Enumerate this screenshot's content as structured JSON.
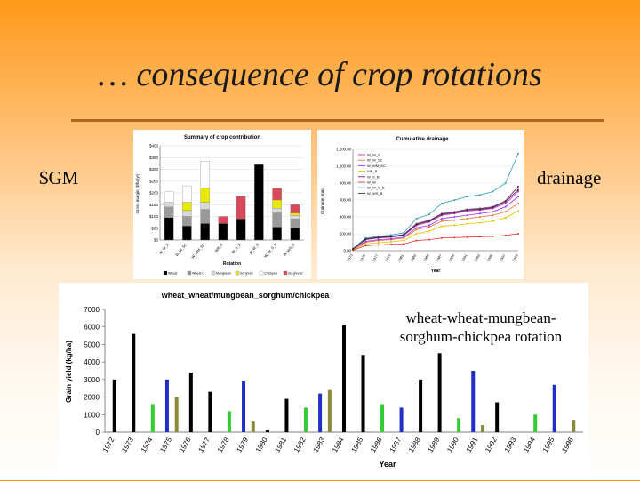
{
  "slide": {
    "title": "… consequence of crop rotations",
    "left_label": "$GM",
    "right_label": "drainage",
    "rotation_note": "wheat-wheat-mungbean-sorghum-chickpea rotation"
  },
  "chart_data": [
    {
      "id": "crop-contribution",
      "type": "bar",
      "stacked": true,
      "title": "Summary of crop contribution",
      "xlabel": "Rotation",
      "ylabel": "Gross margin ($/ha/yr)",
      "ylim": [
        0,
        400
      ],
      "yticks": [
        "$0",
        "$50",
        "$100",
        "$150",
        "$200",
        "$250",
        "$300",
        "$350",
        "$400"
      ],
      "categories": [
        "W_W_S",
        "W_W_SC",
        "W_WM_SC",
        "WB_B",
        "W_S_B",
        "W_W_B",
        "W_W_S_B",
        "W_WS_B"
      ],
      "series": [
        {
          "name": "Wheat",
          "color": "#000000",
          "values": [
            95,
            60,
            70,
            70,
            90,
            320,
            55,
            50
          ]
        },
        {
          "name": "Wheat C",
          "color": "#9a9a9a",
          "values": [
            45,
            40,
            60,
            0,
            0,
            0,
            60,
            40
          ]
        },
        {
          "name": "Mungbean",
          "color": "#d9d9d9",
          "values": [
            20,
            25,
            30,
            0,
            0,
            0,
            20,
            15
          ]
        },
        {
          "name": "Sorghum",
          "color": "#e8e800",
          "values": [
            0,
            35,
            60,
            0,
            0,
            0,
            35,
            10
          ]
        },
        {
          "name": "Chickpea",
          "color": "#ffffff",
          "values": [
            45,
            70,
            115,
            0,
            0,
            0,
            0,
            0
          ]
        },
        {
          "name": "Sorghum2",
          "color": "#d84a5a",
          "values": [
            0,
            0,
            0,
            30,
            95,
            0,
            50,
            35
          ]
        }
      ],
      "legend": [
        "Wheat",
        "Wheat C",
        "Mungbean",
        "Sorghum",
        "Chickpea",
        "Sorghum2"
      ]
    },
    {
      "id": "cumulative-drainage",
      "type": "line",
      "title": "Cumulative drainage",
      "xlabel": "Year",
      "ylabel": "Drainage (mm)",
      "ylim": [
        0,
        1200
      ],
      "yticks": [
        "0.00",
        "200.00",
        "400.00",
        "600.00",
        "800.00",
        "1,000.00",
        "1,200.00"
      ],
      "x": [
        1973,
        1975,
        1977,
        1979,
        1981,
        1983,
        1985,
        1987,
        1989,
        1991,
        1993,
        1995,
        1997,
        1999
      ],
      "series": [
        {
          "name": "W_W_S",
          "color": "#d020c0",
          "values": [
            20,
            130,
            150,
            160,
            180,
            300,
            340,
            420,
            440,
            470,
            480,
            500,
            560,
            700
          ]
        },
        {
          "name": "W_W_SC",
          "color": "#e07030",
          "values": [
            15,
            100,
            120,
            130,
            150,
            250,
            280,
            350,
            360,
            380,
            400,
            420,
            460,
            560
          ]
        },
        {
          "name": "W_WM_SC",
          "color": "#9b30ff",
          "values": [
            18,
            110,
            130,
            140,
            160,
            270,
            300,
            380,
            400,
            420,
            440,
            460,
            520,
            640
          ]
        },
        {
          "name": "WB_B",
          "color": "#e8c000",
          "values": [
            10,
            80,
            95,
            105,
            120,
            200,
            230,
            290,
            300,
            320,
            330,
            350,
            390,
            470
          ]
        },
        {
          "name": "W_S_B",
          "color": "#7a1a7a",
          "values": [
            22,
            140,
            160,
            170,
            190,
            320,
            360,
            440,
            460,
            490,
            500,
            520,
            590,
            760
          ]
        },
        {
          "name": "W_W",
          "color": "#e03030",
          "values": [
            5,
            60,
            70,
            75,
            80,
            120,
            130,
            150,
            155,
            160,
            165,
            170,
            180,
            200
          ]
        },
        {
          "name": "W_W_S_B",
          "color": "#30a0b0",
          "values": [
            25,
            150,
            170,
            185,
            210,
            380,
            430,
            560,
            600,
            640,
            660,
            700,
            800,
            1150
          ]
        },
        {
          "name": "W_WS_B",
          "color": "#303030",
          "values": [
            20,
            135,
            155,
            165,
            185,
            310,
            350,
            430,
            450,
            480,
            490,
            510,
            580,
            720
          ]
        }
      ]
    },
    {
      "id": "grain-yield",
      "type": "bar",
      "title": "wheat_wheat/mungbean_sorghum/chickpea",
      "xlabel": "Year",
      "ylabel": "Grain yield (kg/ha)",
      "ylim": [
        0,
        7000
      ],
      "yticks": [
        "0",
        "1000",
        "2000",
        "3000",
        "4000",
        "5000",
        "6000",
        "7000"
      ],
      "categories": [
        "1972",
        "1973",
        "1974",
        "1975",
        "1976",
        "1977",
        "1978",
        "1979",
        "1980",
        "1981",
        "1982",
        "1983",
        "1984",
        "1985",
        "1986",
        "1987",
        "1988",
        "1989",
        "1990",
        "1991",
        "1992",
        "1993",
        "1994",
        "1995",
        "1996"
      ],
      "colors": {
        "wheat": "#000000",
        "mungbean": "#33cc33",
        "sorghum": "#1f2fc8",
        "chickpea": "#8a8a3a"
      },
      "bars": [
        {
          "year": "1972",
          "crop": "wheat",
          "value": 3000
        },
        {
          "year": "1973",
          "crop": "wheat",
          "value": 5600
        },
        {
          "year": "1974",
          "crop": "mungbean",
          "value": 1600
        },
        {
          "year": "1975",
          "crop": "sorghum",
          "value": 3000
        },
        {
          "year": "1975",
          "crop": "chickpea",
          "value": 2000
        },
        {
          "year": "1976",
          "crop": "wheat",
          "value": 3400
        },
        {
          "year": "1977",
          "crop": "wheat",
          "value": 2300
        },
        {
          "year": "1978",
          "crop": "mungbean",
          "value": 1200
        },
        {
          "year": "1979",
          "crop": "sorghum",
          "value": 2900
        },
        {
          "year": "1979",
          "crop": "chickpea",
          "value": 600
        },
        {
          "year": "1980",
          "crop": "wheat",
          "value": 100
        },
        {
          "year": "1981",
          "crop": "wheat",
          "value": 1900
        },
        {
          "year": "1982",
          "crop": "mungbean",
          "value": 1400
        },
        {
          "year": "1983",
          "crop": "sorghum",
          "value": 2200
        },
        {
          "year": "1983",
          "crop": "chickpea",
          "value": 2400
        },
        {
          "year": "1984",
          "crop": "wheat",
          "value": 6100
        },
        {
          "year": "1985",
          "crop": "wheat",
          "value": 4400
        },
        {
          "year": "1986",
          "crop": "mungbean",
          "value": 1600
        },
        {
          "year": "1987",
          "crop": "sorghum",
          "value": 1400
        },
        {
          "year": "1988",
          "crop": "wheat",
          "value": 3000
        },
        {
          "year": "1989",
          "crop": "wheat",
          "value": 4500
        },
        {
          "year": "1990",
          "crop": "mungbean",
          "value": 800
        },
        {
          "year": "1991",
          "crop": "sorghum",
          "value": 3500
        },
        {
          "year": "1991",
          "crop": "chickpea",
          "value": 400
        },
        {
          "year": "1992",
          "crop": "wheat",
          "value": 1700
        },
        {
          "year": "1994",
          "crop": "mungbean",
          "value": 1000
        },
        {
          "year": "1995",
          "crop": "sorghum",
          "value": 2700
        },
        {
          "year": "1996",
          "crop": "chickpea",
          "value": 700
        }
      ]
    }
  ]
}
